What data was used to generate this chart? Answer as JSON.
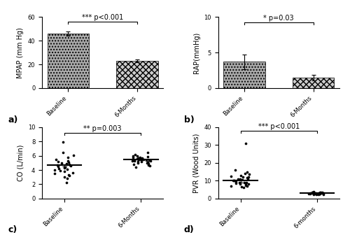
{
  "mpap_baseline_mean": 46,
  "mpap_baseline_err": 2,
  "mpap_6mo_mean": 23,
  "mpap_6mo_err": 1.0,
  "mpap_ylim": [
    0,
    60
  ],
  "mpap_yticks": [
    0,
    20,
    40,
    60
  ],
  "mpap_ylabel": "MPAP (mm Hg)",
  "mpap_sig": "*** p<0.001",
  "rap_baseline_mean": 3.7,
  "rap_baseline_err": 1.0,
  "rap_6mo_mean": 1.5,
  "rap_6mo_err": 0.4,
  "rap_ylim": [
    0,
    10
  ],
  "rap_yticks": [
    0,
    5,
    10
  ],
  "rap_ylabel": "RAP(mmHg)",
  "rap_sig": "* p=0.03",
  "co_baseline_mean": 4.65,
  "co_baseline_err": 0.18,
  "co_6mo_mean": 5.5,
  "co_6mo_err": 0.15,
  "co_ylim": [
    0,
    10
  ],
  "co_yticks": [
    0,
    2,
    4,
    6,
    8,
    10
  ],
  "co_ylabel": "CO (L/min)",
  "co_sig": "** p=0.003",
  "co_baseline_dots": [
    4.7,
    3.5,
    2.8,
    3.2,
    3.8,
    4.2,
    4.5,
    4.8,
    5.2,
    5.5,
    5.8,
    6.1,
    4.0,
    4.3,
    4.6,
    4.9,
    5.1,
    3.9,
    3.6,
    3.3,
    4.4,
    4.7,
    5.0,
    5.3,
    6.5,
    7.9,
    2.2,
    3.0,
    4.1,
    4.8
  ],
  "co_6mo_dots": [
    5.0,
    5.2,
    5.4,
    5.6,
    5.8,
    6.0,
    4.8,
    5.1,
    5.3,
    5.5,
    5.7,
    5.9,
    6.2,
    4.9,
    5.2,
    5.4,
    5.6,
    4.7,
    5.0,
    5.3,
    5.5,
    6.0,
    5.1,
    5.4,
    5.7,
    4.6,
    5.3,
    5.8,
    6.5,
    4.4
  ],
  "pvr_baseline_mean": 10.0,
  "pvr_baseline_err": 1.0,
  "pvr_6mo_mean": 3.0,
  "pvr_6mo_err": 0.2,
  "pvr_ylim": [
    0,
    40
  ],
  "pvr_yticks": [
    0,
    10,
    20,
    30,
    40
  ],
  "pvr_ylabel": "PVR (Wood Units)",
  "pvr_sig": "*** p<0.001",
  "pvr_baseline_dots": [
    10.5,
    8.0,
    12.0,
    15.0,
    7.0,
    9.0,
    11.0,
    13.0,
    6.0,
    10.0,
    8.5,
    14.0,
    9.0,
    11.5,
    7.5,
    12.5,
    10.0,
    8.0,
    16.0,
    9.5,
    11.0,
    13.5,
    6.5,
    10.0,
    31.0,
    8.0,
    12.0,
    7.0,
    9.0,
    11.0
  ],
  "pvr_6mo_dots": [
    3.0,
    2.5,
    3.5,
    2.8,
    3.2,
    2.2,
    3.8,
    2.6,
    3.0,
    2.4,
    3.3,
    2.9,
    3.1,
    2.7,
    3.4,
    2.3,
    3.0,
    2.8,
    3.2,
    2.6,
    3.5,
    2.9,
    3.1,
    2.4,
    3.0,
    2.7,
    3.3,
    2.8,
    3.1,
    2.5
  ],
  "bar_color_baseline": "#aaaaaa",
  "bar_color_6mo": "#cccccc",
  "hatch_baseline": "....",
  "hatch_6mo": "xxxx",
  "background_color": "#ffffff",
  "x_labels_bar": [
    "Baseline",
    "6-Months"
  ],
  "x_labels_dot_co": [
    "Baseline",
    "6-Months"
  ],
  "x_labels_dot_pvr": [
    "Baseline",
    "6-months"
  ],
  "label_fontsize": 7,
  "tick_fontsize": 6,
  "sig_fontsize": 7,
  "panel_label_fontsize": 9
}
